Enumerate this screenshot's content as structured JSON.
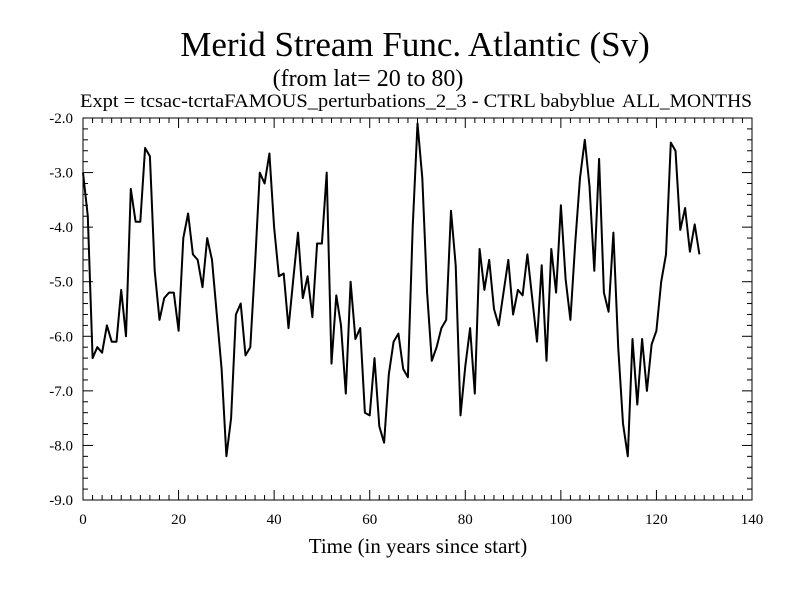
{
  "chart_data": {
    "type": "line",
    "title": "Merid Stream Func. Atlantic (Sv)",
    "subtitle": "(from lat= 20 to 80)",
    "experiment_label": "Expt = tcsac-tcrtaFAMOUS_perturbations_2_3 - CTRL babyblue",
    "months_label": "ALL_MONTHS",
    "xlabel": "Time (in years since start)",
    "ylabel": "",
    "xlim": [
      0,
      140
    ],
    "ylim": [
      -9.0,
      -2.0
    ],
    "x_ticks": [
      0,
      20,
      40,
      60,
      80,
      100,
      120,
      140
    ],
    "x_tick_labels": [
      "0",
      "20",
      "40",
      "60",
      "80",
      "100",
      "120",
      "140"
    ],
    "y_ticks": [
      -9.0,
      -8.0,
      -7.0,
      -6.0,
      -5.0,
      -4.0,
      -3.0,
      -2.0
    ],
    "y_tick_labels": [
      "-9.0",
      "-8.0",
      "-7.0",
      "-6.0",
      "-5.0",
      "-4.0",
      "-3.0",
      "-2.0"
    ],
    "grid": false,
    "line_color": "#000000",
    "series": [
      {
        "name": "tcsac-tcrtaFAMOUS_perturbations_2_3 - CTRL",
        "x": [
          0,
          1,
          2,
          3,
          4,
          5,
          6,
          7,
          8,
          9,
          10,
          11,
          12,
          13,
          14,
          15,
          16,
          17,
          18,
          19,
          20,
          21,
          22,
          23,
          24,
          25,
          26,
          27,
          28,
          29,
          30,
          31,
          32,
          33,
          34,
          35,
          36,
          37,
          38,
          39,
          40,
          41,
          42,
          43,
          44,
          45,
          46,
          47,
          48,
          49,
          50,
          51,
          52,
          53,
          54,
          55,
          56,
          57,
          58,
          59,
          60,
          61,
          62,
          63,
          64,
          65,
          66,
          67,
          68,
          69,
          70,
          71,
          72,
          73,
          74,
          75,
          76,
          77,
          78,
          79,
          80,
          81,
          82,
          83,
          84,
          85,
          86,
          87,
          88,
          89,
          90,
          91,
          92,
          93,
          94,
          95,
          96,
          97,
          98,
          99,
          100,
          101,
          102,
          103,
          104,
          105,
          106,
          107,
          108,
          109,
          110,
          111,
          112,
          113,
          114,
          115,
          116,
          117,
          118,
          119,
          120,
          121,
          122,
          123,
          124,
          125,
          126,
          127,
          128,
          129
        ],
        "y": [
          -3.0,
          -3.8,
          -6.4,
          -6.2,
          -6.3,
          -5.8,
          -6.1,
          -6.1,
          -5.15,
          -6.0,
          -3.3,
          -3.9,
          -3.9,
          -2.55,
          -2.7,
          -4.8,
          -5.7,
          -5.3,
          -5.2,
          -5.2,
          -5.9,
          -4.2,
          -3.75,
          -4.5,
          -4.6,
          -5.1,
          -4.2,
          -4.6,
          -5.6,
          -6.6,
          -8.2,
          -7.5,
          -5.6,
          -5.4,
          -6.35,
          -6.2,
          -4.7,
          -3.0,
          -3.2,
          -2.65,
          -4.0,
          -4.9,
          -4.85,
          -5.85,
          -4.95,
          -4.1,
          -5.3,
          -4.9,
          -5.65,
          -4.3,
          -4.3,
          -3.0,
          -6.5,
          -5.25,
          -5.8,
          -7.05,
          -5.0,
          -6.05,
          -5.85,
          -7.4,
          -7.45,
          -6.4,
          -7.65,
          -7.95,
          -6.7,
          -6.1,
          -5.95,
          -6.6,
          -6.75,
          -4.0,
          -2.1,
          -3.1,
          -5.2,
          -6.45,
          -6.2,
          -5.85,
          -5.7,
          -3.7,
          -4.7,
          -7.45,
          -6.55,
          -5.85,
          -7.05,
          -4.4,
          -5.15,
          -4.6,
          -5.5,
          -5.8,
          -5.2,
          -4.6,
          -5.6,
          -5.15,
          -5.25,
          -4.5,
          -5.3,
          -6.1,
          -4.7,
          -6.45,
          -4.4,
          -5.2,
          -3.6,
          -4.95,
          -5.7,
          -4.3,
          -3.1,
          -2.4,
          -3.25,
          -4.8,
          -2.75,
          -5.2,
          -5.55,
          -4.1,
          -6.2,
          -7.6,
          -8.2,
          -6.05,
          -7.25,
          -6.05,
          -7.0,
          -6.15,
          -5.9,
          -5.0,
          -4.5,
          -2.45,
          -2.6,
          -4.05,
          -3.65,
          -4.45,
          -3.95,
          -4.5
        ]
      }
    ]
  }
}
